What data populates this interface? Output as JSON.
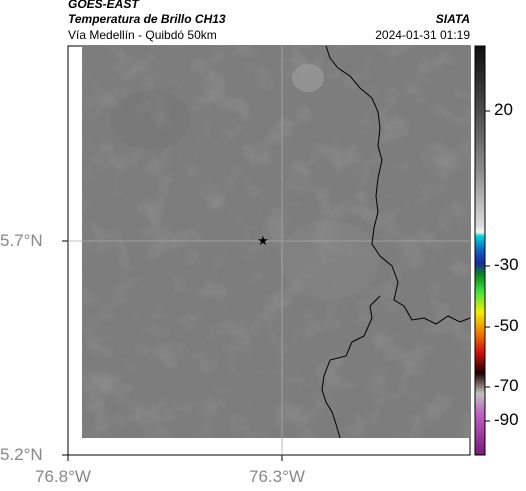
{
  "header": {
    "satellite": "GOES-EAST",
    "product": "Temperatura de Brillo CH13",
    "region": "Vía Medellín - Quibdó 50km",
    "agency": "SIATA",
    "datetime": "2024-01-31 01:19"
  },
  "axes": {
    "lat_labels": [
      "5.7°N",
      "5.2°N"
    ],
    "lon_labels": [
      "76.8°W",
      "76.3°W"
    ]
  },
  "colorbar": {
    "tick_labels": [
      "20",
      "-30",
      "-50",
      "-70",
      "-90"
    ]
  },
  "map": {
    "marker_icon": "star-icon",
    "colors": {
      "field": "#7d7d7d",
      "border": "#000000",
      "grid": "#aaaaaa"
    }
  }
}
